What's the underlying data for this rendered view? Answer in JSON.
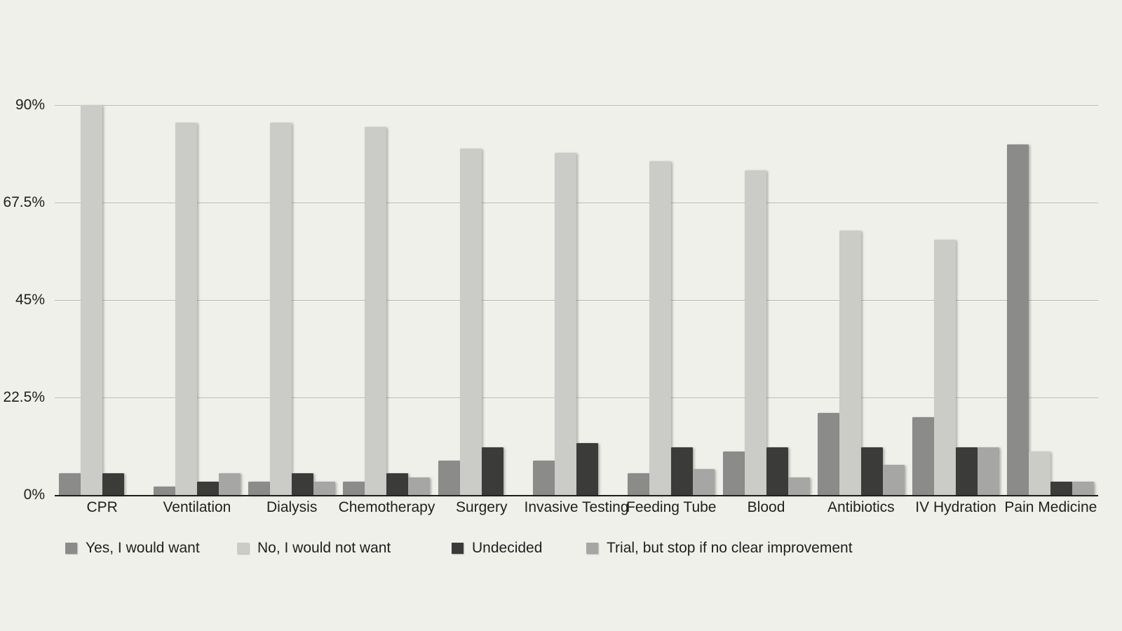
{
  "colors": {
    "background": "#eff0ea",
    "gridline": "#b5b6af",
    "axis_line": "#1c1c1b",
    "text": "#1f1f1e"
  },
  "chart_data": {
    "type": "bar",
    "title": "",
    "xlabel": "",
    "ylabel": "",
    "ylim": [
      0,
      90
    ],
    "grid": true,
    "legend_position": "bottom",
    "yticks": [
      {
        "label": "90%",
        "value": 90
      },
      {
        "label": "67.5%",
        "value": 67.5
      },
      {
        "label": "45%",
        "value": 45
      },
      {
        "label": "22.5%",
        "value": 22.5
      },
      {
        "label": "0%",
        "value": 0
      }
    ],
    "categories": [
      "CPR",
      "Ventilation",
      "Dialysis",
      "Chemotherapy",
      "Surgery",
      "Invasive Testing",
      "Feeding Tube",
      "Blood",
      "Antibiotics",
      "IV Hydration",
      "Pain Medicine"
    ],
    "series": [
      {
        "name": "Yes, I would want",
        "color": "#8b8b8a",
        "values": [
          5,
          2,
          3,
          3,
          8,
          8,
          5,
          10,
          19,
          18,
          81
        ]
      },
      {
        "name": "No, I would not want",
        "color": "#cbcbc8",
        "values": [
          90,
          86,
          86,
          85,
          80,
          79,
          77,
          75,
          61,
          59,
          10
        ]
      },
      {
        "name": "Undecided",
        "color": "#3b3b39",
        "values": [
          5,
          3,
          5,
          5,
          11,
          12,
          11,
          11,
          11,
          11,
          3
        ]
      },
      {
        "name": "Trial, but stop if no clear improvement",
        "color": "#a6a6a4",
        "values": [
          0,
          5,
          3,
          4,
          0,
          0,
          6,
          4,
          7,
          11,
          3
        ]
      }
    ],
    "legend_x_positions": [
      93,
      338,
      644,
      836
    ]
  }
}
